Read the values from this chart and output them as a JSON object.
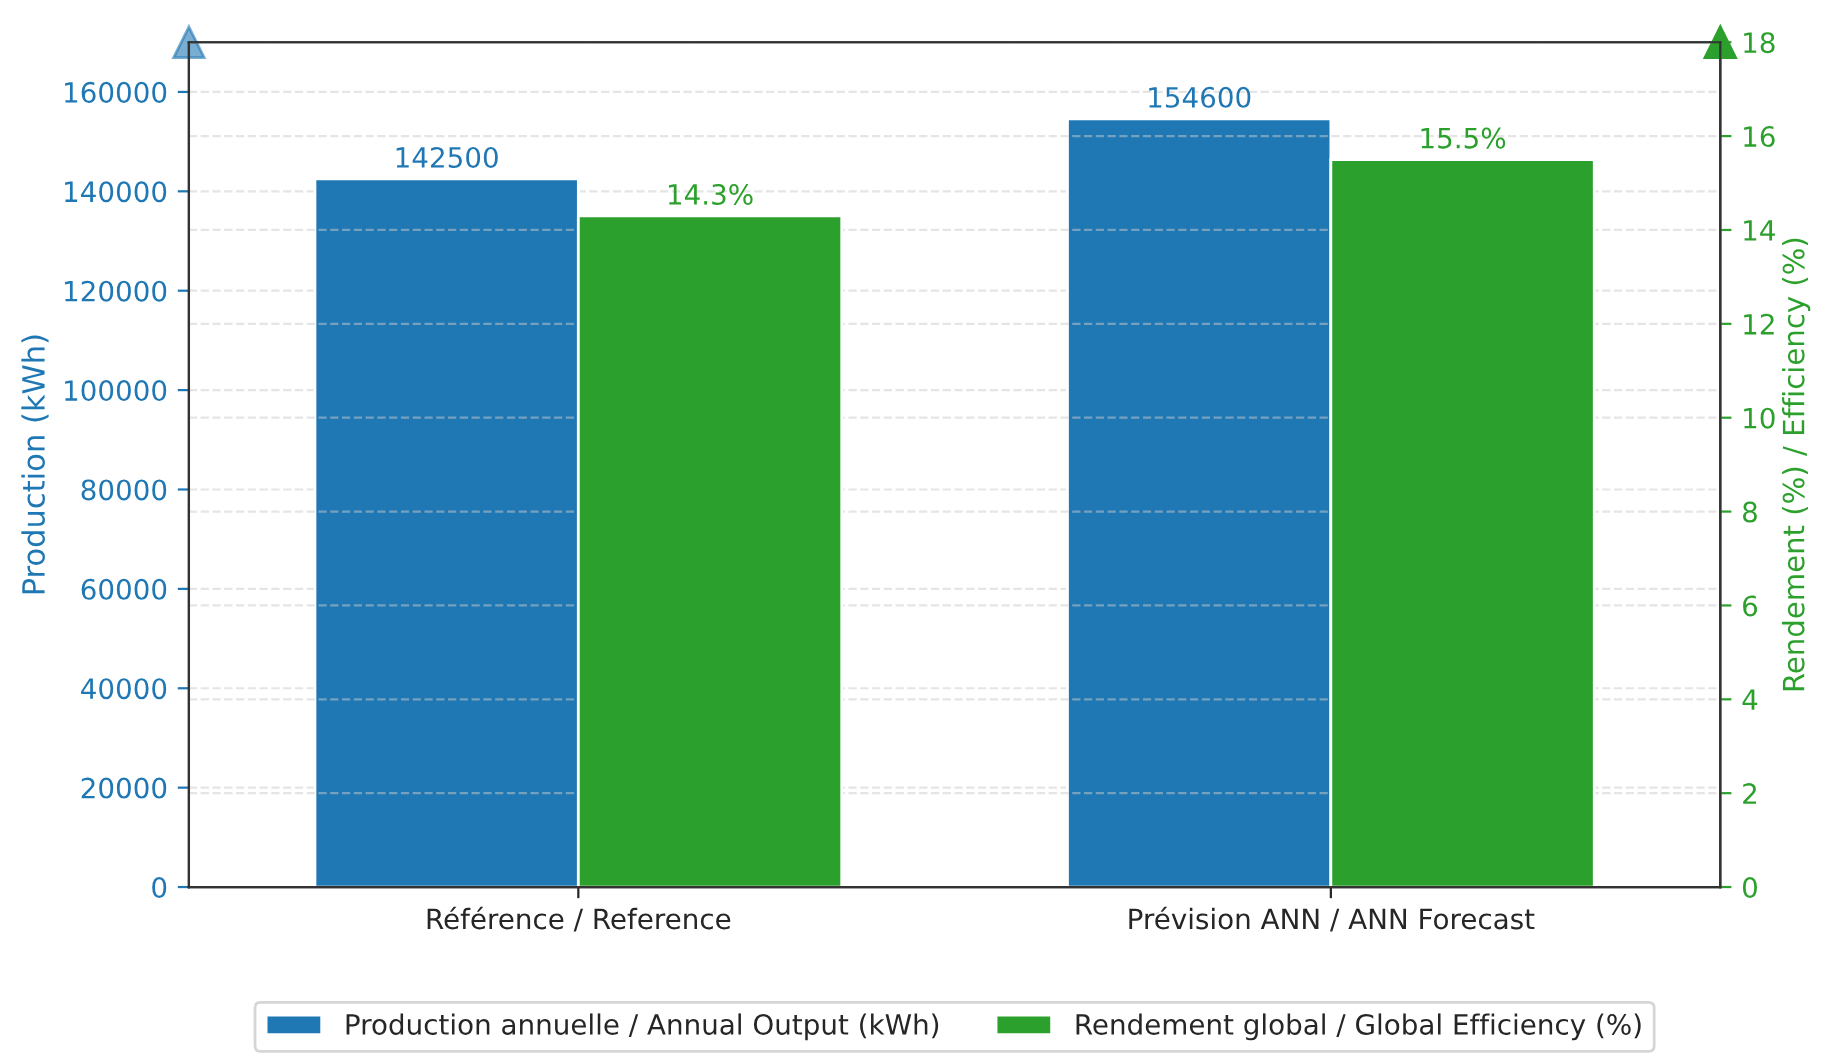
{
  "chart_data": {
    "type": "bar",
    "categories": [
      "Référence / Reference",
      "Prévision ANN / ANN Forecast"
    ],
    "series": [
      {
        "name": "Production annuelle / Annual Output (kWh)",
        "color": "#1f77b4",
        "values": [
          142500,
          154600
        ],
        "value_labels": [
          "142500",
          "154600"
        ]
      },
      {
        "name": "Rendement global / Global Efficiency (%)",
        "color": "#2ca02c",
        "values": [
          14.3,
          15.5
        ],
        "value_labels": [
          "14.3%",
          "15.5%"
        ],
        "axis": "y2"
      }
    ],
    "ylabel": "Production (kWh)",
    "y2label": "Rendement (%) / Efficiency (%)",
    "ylim": [
      0,
      170000
    ],
    "yticks": [
      0,
      20000,
      40000,
      60000,
      80000,
      100000,
      120000,
      140000,
      160000
    ],
    "y2lim": [
      0,
      18
    ],
    "y2ticks": [
      0,
      2,
      4,
      6,
      8,
      10,
      12,
      14,
      16,
      18
    ],
    "grid": "y",
    "legend": "bottom"
  }
}
